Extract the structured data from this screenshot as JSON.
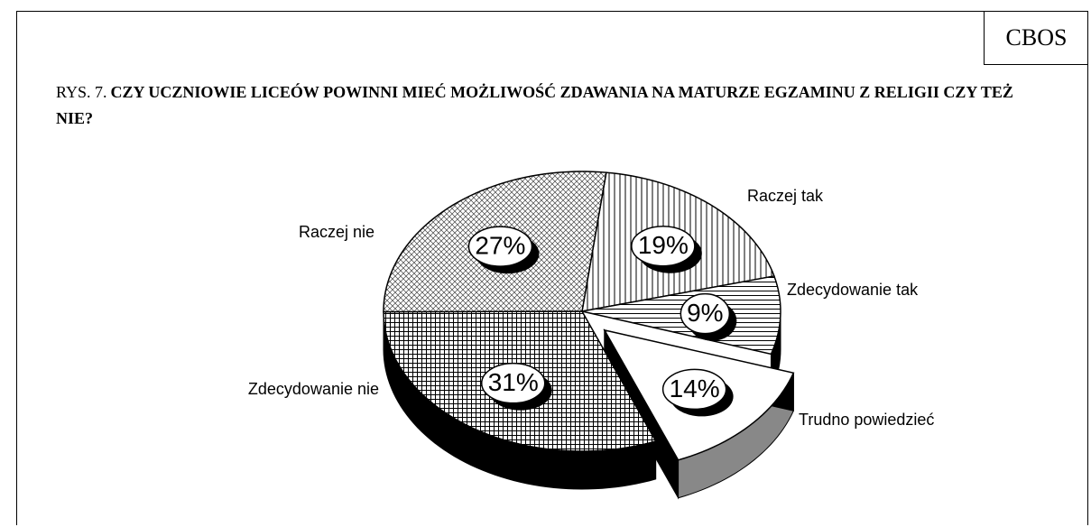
{
  "source": "CBOS",
  "chart_data": {
    "type": "pie",
    "figure_label": "RYS. 7.",
    "title": "CZY UCZNIOWIE LICEÓW POWINNI MIEĆ MOŻLIWOŚĆ ZDAWANIA NA MATURZE EGZAMINU Z RELIGII CZY TEŻ NIE?",
    "categories": [
      "Raczej tak",
      "Zdecydowanie tak",
      "Trudno powiedzieć",
      "Zdecydowanie nie",
      "Raczej nie"
    ],
    "values": [
      19,
      9,
      14,
      31,
      27
    ],
    "value_labels": [
      "19%",
      "9%",
      "14%",
      "31%",
      "27%"
    ],
    "exploded": "Trudno powiedzieć"
  }
}
